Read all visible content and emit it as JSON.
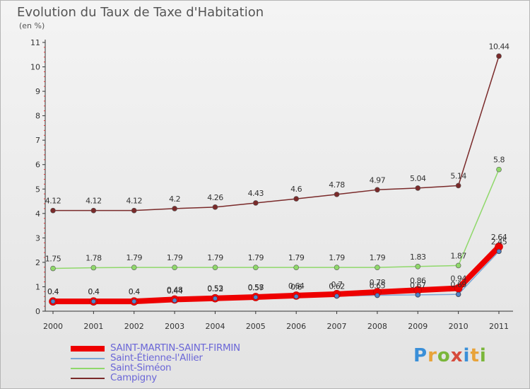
{
  "title": "Evolution du Taux de Taxe d'Habitation",
  "unit": "(en %)",
  "logo": {
    "letters": [
      "P",
      "r",
      "o",
      "x",
      "i",
      "t",
      "i"
    ],
    "colors": [
      "#3a8fd8",
      "#e8a33a",
      "#7ab63a",
      "#d64b3c",
      "#3a8fd8",
      "#e8a33a",
      "#7ab63a"
    ]
  },
  "chart_data": {
    "type": "line",
    "title": "Evolution du Taux de Taxe d'Habitation",
    "ylabel": "(en %)",
    "xlabel": "",
    "x": [
      "2000",
      "2001",
      "2002",
      "2003",
      "2004",
      "2005",
      "2006",
      "2007",
      "2008",
      "2009",
      "2010",
      "2011"
    ],
    "ylim": [
      0,
      11
    ],
    "yticks": [
      "0",
      "1",
      "2",
      "3",
      "4",
      "5",
      "6",
      "7",
      "8",
      "9",
      "10",
      "11"
    ],
    "grid": false,
    "legend_position": "bottom-left",
    "series": [
      {
        "name": "SAINT-MARTIN-SAINT-FIRMIN",
        "color": "#ee0000",
        "values": [
          0.4,
          0.4,
          0.4,
          0.48,
          0.53,
          0.58,
          0.64,
          0.7,
          0.78,
          0.86,
          0.94,
          2.64
        ],
        "labels": [
          "0.4",
          "0.4",
          "0.4",
          "0.48",
          "0.53",
          "0.58",
          "0.64",
          "0.7",
          "0.78",
          "0.86",
          "0.94",
          "2.64"
        ]
      },
      {
        "name": "Saint-Étienne-l'Allier",
        "color": "#7aa6d6",
        "values": [
          0.4,
          0.4,
          0.4,
          0.44,
          0.52,
          0.57,
          0.6,
          0.62,
          0.65,
          0.67,
          0.69,
          2.45
        ],
        "labels": [
          "0.4",
          "0.4",
          "0.4",
          "0.44",
          "0.52",
          "0.57",
          "0.6",
          "0.62",
          "0.65",
          "0.67",
          "0.69",
          "2.45"
        ]
      },
      {
        "name": "Saint-Siméon",
        "color": "#8fd86a",
        "values": [
          1.75,
          1.78,
          1.79,
          1.79,
          1.79,
          1.79,
          1.79,
          1.79,
          1.79,
          1.83,
          1.87,
          5.8
        ],
        "labels": [
          "1.75",
          "1.78",
          "1.79",
          "1.79",
          "1.79",
          "1.79",
          "1.79",
          "1.79",
          "1.79",
          "1.83",
          "1.87",
          "5.8"
        ]
      },
      {
        "name": "Campigny",
        "color": "#7a2a2a",
        "values": [
          4.12,
          4.12,
          4.12,
          4.2,
          4.26,
          4.43,
          4.6,
          4.78,
          4.97,
          5.04,
          5.14,
          10.44
        ],
        "labels": [
          "4.12",
          "4.12",
          "4.12",
          "4.2",
          "4.26",
          "4.43",
          "4.6",
          "4.78",
          "4.97",
          "5.04",
          "5.14",
          "10.44"
        ]
      }
    ]
  }
}
